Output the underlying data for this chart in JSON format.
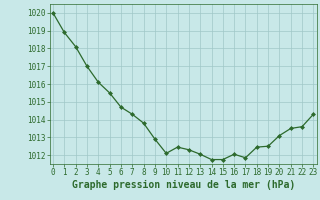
{
  "x": [
    0,
    1,
    2,
    3,
    4,
    5,
    6,
    7,
    8,
    9,
    10,
    11,
    12,
    13,
    14,
    15,
    16,
    17,
    18,
    19,
    20,
    21,
    22,
    23
  ],
  "y": [
    1020.0,
    1018.9,
    1018.1,
    1017.0,
    1016.1,
    1015.5,
    1014.7,
    1014.3,
    1013.8,
    1012.9,
    1012.1,
    1012.45,
    1012.3,
    1012.05,
    1011.75,
    1011.75,
    1012.05,
    1011.85,
    1012.45,
    1012.5,
    1013.1,
    1013.5,
    1013.6,
    1014.3
  ],
  "xlim": [
    -0.3,
    23.3
  ],
  "ylim": [
    1011.5,
    1020.5
  ],
  "yticks": [
    1012,
    1013,
    1014,
    1015,
    1016,
    1017,
    1018,
    1019,
    1020
  ],
  "xticks": [
    0,
    1,
    2,
    3,
    4,
    5,
    6,
    7,
    8,
    9,
    10,
    11,
    12,
    13,
    14,
    15,
    16,
    17,
    18,
    19,
    20,
    21,
    22,
    23
  ],
  "line_color": "#2d6a2d",
  "marker_color": "#2d6a2d",
  "bg_color": "#c8e8e8",
  "grid_color": "#a0c8c8",
  "xlabel": "Graphe pression niveau de la mer (hPa)",
  "xlabel_color": "#2d6a2d",
  "tick_color": "#2d6a2d",
  "tick_fontsize": 5.5,
  "xlabel_fontsize": 7.0,
  "bottom_bar_color": "#3a7a3a"
}
